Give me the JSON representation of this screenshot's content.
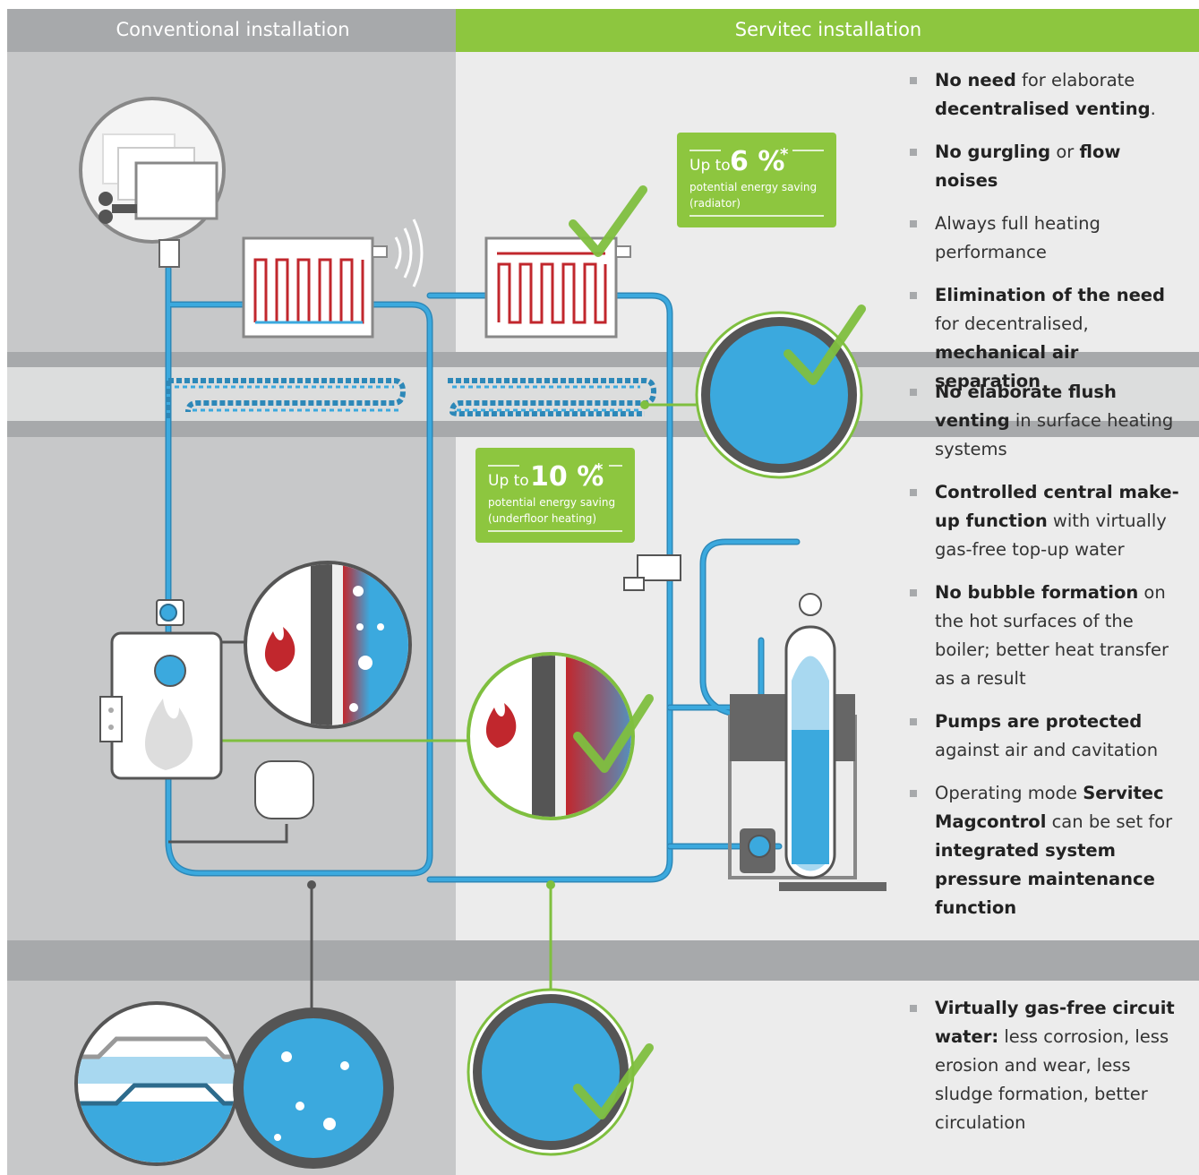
{
  "header": {
    "left": "Conventional installation",
    "right": "Servitec installation"
  },
  "badges": [
    {
      "prefix": "Up to",
      "value": "6 %",
      "star": "*",
      "caption": [
        "potential energy saving",
        "(radiator)"
      ]
    },
    {
      "prefix": "Up to",
      "value": "10 %",
      "star": "*",
      "caption": [
        "potential energy saving",
        "(underfloor heating)"
      ]
    }
  ],
  "bullet_groups": [
    [
      [
        {
          "text": "No need",
          "bold": true
        },
        {
          "text": " for elaborate "
        },
        {
          "text": "decentralised venting",
          "bold": true
        },
        {
          "text": "."
        }
      ],
      [
        {
          "text": "No gurgling",
          "bold": true
        },
        {
          "text": " or "
        },
        {
          "text": "flow noises",
          "bold": true
        }
      ],
      [
        {
          "text": "Always full heating performance"
        }
      ],
      [
        {
          "text": "Elimination of the need",
          "bold": true
        },
        {
          "text": " for decentralised, "
        },
        {
          "text": "mechanical air separation",
          "bold": true
        }
      ]
    ],
    [
      [
        {
          "text": "No elaborate flush venting",
          "bold": true
        },
        {
          "text": " in surface heating systems"
        }
      ],
      [
        {
          "text": "Controlled central make-up function",
          "bold": true
        },
        {
          "text": " with virtually gas-free top-up water"
        }
      ],
      [
        {
          "text": "No bubble formation",
          "bold": true
        },
        {
          "text": " on the hot surfaces of the boiler; better heat transfer as a result"
        }
      ],
      [
        {
          "text": "Pumps are protected",
          "bold": true
        },
        {
          "text": " against air and cavitation"
        }
      ],
      [
        {
          "text": "Operating mode "
        },
        {
          "text": "Servitec Magcontrol",
          "bold": true
        },
        {
          "text": " can be set for "
        },
        {
          "text": "integrated system pressure maintenance function",
          "bold": true
        }
      ]
    ],
    [
      [
        {
          "text": "Virtually gas-free circuit water:",
          "bold": true
        },
        {
          "text": " less corrosion, less erosion and wear, less sludge formation, better circulation"
        }
      ]
    ]
  ]
}
